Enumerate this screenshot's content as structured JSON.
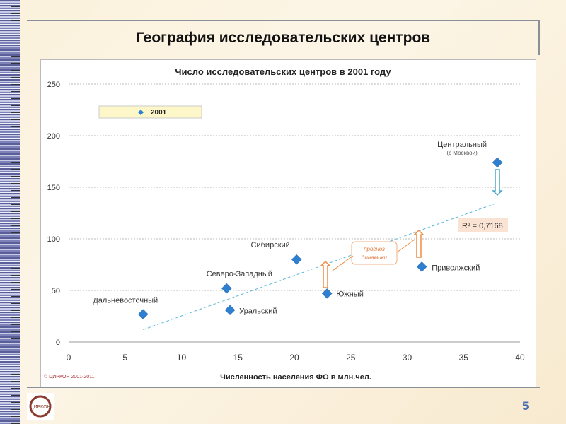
{
  "slide": {
    "title": "География исследовательских центров",
    "page_number": "5",
    "copyright": "© ЦИРКОН 2001-2011",
    "logo_text": "ЦИРКОН"
  },
  "chart_data": {
    "type": "scatter",
    "title": "Число исследовательских центров в 2001 году",
    "xlabel": "Численность населения ФО в млн.чел.",
    "ylabel": "",
    "xlim": [
      0,
      40
    ],
    "ylim": [
      0,
      250
    ],
    "xticks": [
      0,
      5,
      10,
      15,
      20,
      25,
      30,
      35,
      40
    ],
    "yticks": [
      0,
      50,
      100,
      150,
      200,
      250
    ],
    "grid": "horizontal dashed",
    "legend": {
      "placement": "top-left",
      "entries": [
        "2001"
      ]
    },
    "series": [
      {
        "name": "2001",
        "color": "#2f7fd0",
        "points": [
          {
            "label": "Дальневосточный",
            "x": 6.6,
            "y": 27
          },
          {
            "label": "Северо-Западный",
            "x": 14.0,
            "y": 52
          },
          {
            "label": "Уральский",
            "x": 14.3,
            "y": 31
          },
          {
            "label": "Сибирский",
            "x": 20.2,
            "y": 80
          },
          {
            "label": "Южный",
            "x": 22.9,
            "y": 47
          },
          {
            "label": "Приволжский",
            "x": 31.3,
            "y": 73
          },
          {
            "label": "Центральный",
            "sublabel": "(с Москвой)",
            "x": 38.0,
            "y": 174
          }
        ]
      }
    ],
    "trendline": {
      "type": "linear",
      "x": [
        6.6,
        38.0
      ],
      "y": [
        12,
        135
      ],
      "r2_label": "R² = 0,7168",
      "color": "#5bb8d8"
    },
    "annotations": {
      "callout": [
        "прогноз",
        "динамики"
      ]
    }
  }
}
